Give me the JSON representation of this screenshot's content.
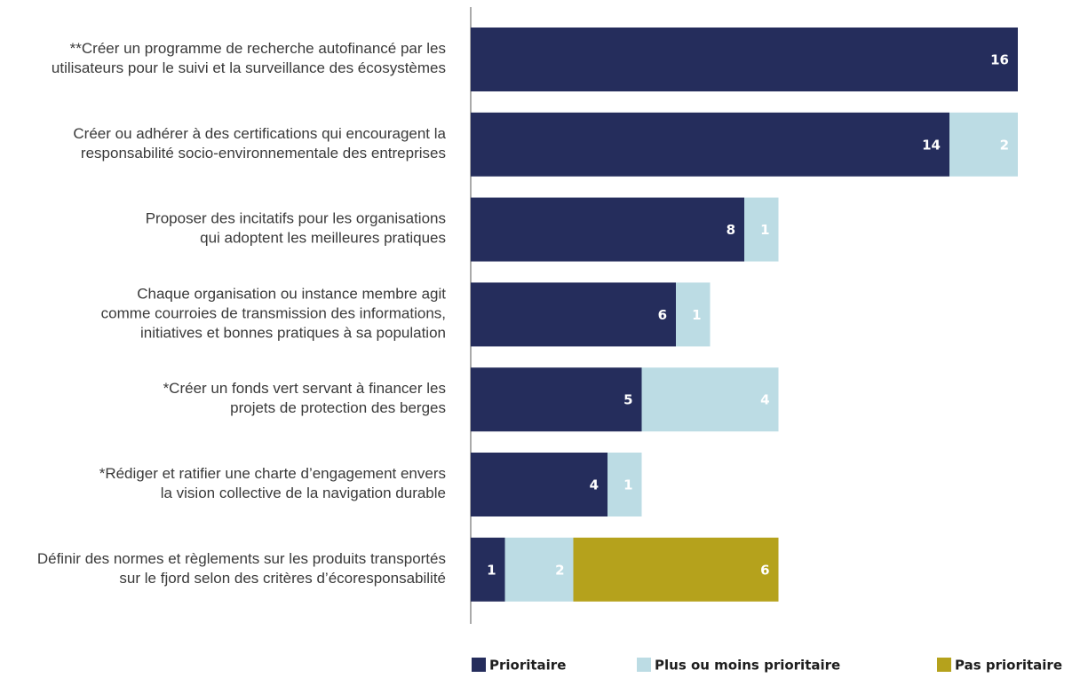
{
  "chart_data": {
    "type": "stacked-barh",
    "categories": [
      "**Créer un programme de recherche autofinancé par les\nutilisateurs pour le suivi et la surveillance des écosystèmes",
      "Créer ou adhérer à des certifications qui encouragent la\nresponsabilité socio-environnementale des entreprises",
      "Proposer des incitatifs pour les organisations\nqui adoptent les meilleures pratiques",
      "Chaque organisation ou instance membre agit\ncomme courroies de transmission des informations,\ninitiatives et bonnes pratiques à sa population",
      "*Créer un fonds vert servant à financer les\nprojets de protection des berges",
      "*Rédiger et ratifier une charte d’engagement envers\nla vision collective de la navigation durable",
      "Définir des normes et règlements sur les produits transportés\nsur le fjord selon des critères d’écoresponsabilité"
    ],
    "series": [
      {
        "name": "Prioritaire",
        "color": "#252d5c",
        "values": [
          16,
          14,
          8,
          6,
          5,
          4,
          1
        ]
      },
      {
        "name": "Plus ou moins prioritaire",
        "color": "#bcdce4",
        "values": [
          null,
          2,
          1,
          1,
          4,
          1,
          2
        ]
      },
      {
        "name": "Pas prioritaire",
        "color": "#b5a21c",
        "values": [
          null,
          null,
          null,
          null,
          null,
          null,
          6
        ]
      }
    ],
    "legend": "bottom"
  }
}
